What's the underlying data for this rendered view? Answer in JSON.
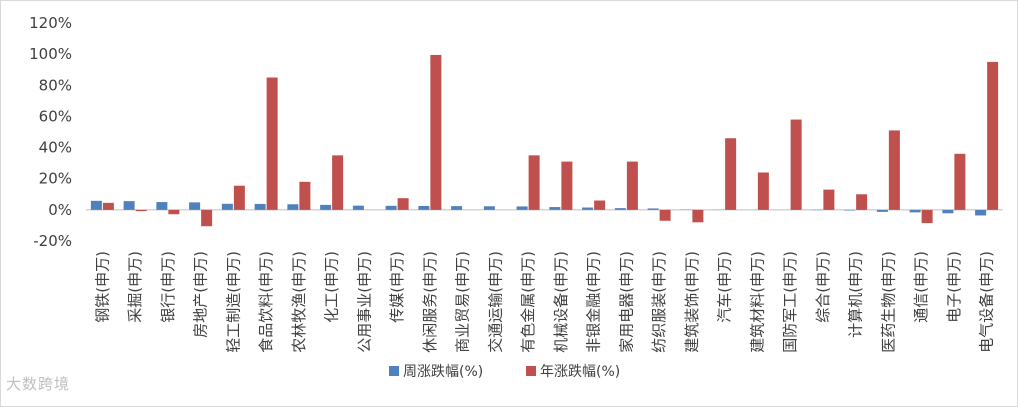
{
  "chart_data": {
    "type": "bar",
    "categories": [
      "钢铁(申万)",
      "采掘(申万)",
      "银行(申万)",
      "房地产(申万)",
      "轻工制造(申万)",
      "食品饮料(申万)",
      "农林牧渔(申万)",
      "化工(申万)",
      "公用事业(申万)",
      "传媒(申万)",
      "休闲服务(申万)",
      "商业贸易(申万)",
      "交通运输(申万)",
      "有色金属(申万)",
      "机械设备(申万)",
      "非银金融(申万)",
      "家用电器(申万)",
      "纺织服装(申万)",
      "建筑装饰(申万)",
      "汽车(申万)",
      "建筑材料(申万)",
      "国防军工(申万)",
      "综合(申万)",
      "计算机(申万)",
      "医药生物(申万)",
      "通信(申万)",
      "电子(申万)",
      "电气设备(申万)"
    ],
    "series": [
      {
        "name": "周涨跌幅(%)",
        "color": "#4f81bd",
        "values": [
          5.8,
          5.6,
          5.0,
          4.8,
          3.9,
          3.8,
          3.6,
          3.2,
          2.7,
          2.6,
          2.5,
          2.4,
          2.3,
          2.2,
          1.8,
          1.5,
          1.1,
          0.9,
          0.2,
          0.1,
          0.0,
          0.0,
          -0.2,
          -0.4,
          -1.3,
          -1.6,
          -2.2,
          -3.6
        ]
      },
      {
        "name": "年涨跌幅(%)",
        "color": "#c0504d",
        "values": [
          4.5,
          -0.8,
          -2.8,
          -10.5,
          15.5,
          85.0,
          18.0,
          35.0,
          0.0,
          7.5,
          99.5,
          0.0,
          0.0,
          35.0,
          31.0,
          6.0,
          31.0,
          -7.0,
          -8.0,
          46.0,
          24.0,
          58.0,
          13.0,
          10.0,
          51.0,
          -8.5,
          36.0,
          95.0
        ]
      }
    ],
    "ylim": [
      -20,
      120
    ],
    "yticks": [
      "-20%",
      "0%",
      "20%",
      "40%",
      "60%",
      "80%",
      "100%",
      "120%"
    ],
    "legend_position": "bottom",
    "grid": false
  },
  "watermark": "大数跨境"
}
